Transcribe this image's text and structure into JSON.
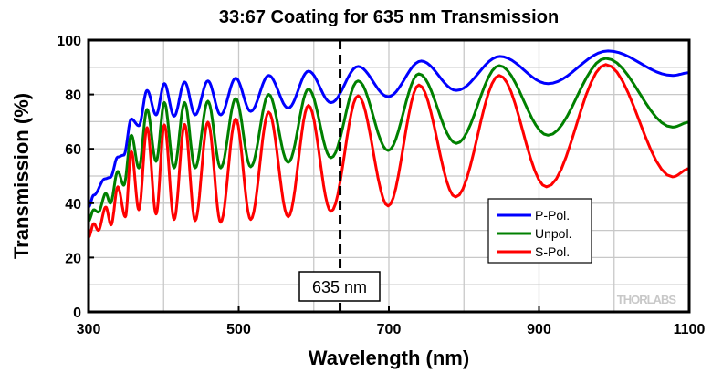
{
  "chart_data": {
    "type": "line",
    "title": "33:67 Coating for 635 nm Transmission",
    "xlabel": "Wavelength (nm)",
    "ylabel": "Transmission (%)",
    "xlim": [
      300,
      1100
    ],
    "ylim": [
      0,
      100
    ],
    "xticks": [
      300,
      500,
      700,
      900,
      1100
    ],
    "yticks": [
      0,
      20,
      40,
      60,
      80,
      100
    ],
    "grid": true,
    "legend_placement": "lower-right",
    "annotation": {
      "x": 635,
      "label": "635 nm",
      "style": "dashed vertical line"
    },
    "watermark": "THORLABS",
    "series": [
      {
        "name": "P-Pol.",
        "color": "#0000ff",
        "x": [
          300,
          307,
          322,
          329,
          339,
          347,
          357,
          367,
          378,
          390,
          401,
          414,
          428,
          442,
          459,
          476,
          496,
          516,
          540,
          566,
          593,
          623,
          659,
          699,
          743,
          790,
          848,
          912,
          992,
          1078,
          1100
        ],
        "y": [
          38.6,
          43,
          49,
          49.5,
          57,
          57.7,
          71,
          68.5,
          81.5,
          72.5,
          84,
          72,
          84.6,
          72.5,
          85,
          72.5,
          86,
          73.8,
          87,
          75,
          88.6,
          77,
          90.3,
          79.2,
          92.3,
          81.5,
          94,
          84,
          96,
          87,
          88
        ]
      },
      {
        "name": "Unpol.",
        "color": "#008000",
        "x": [
          300,
          307,
          313,
          323,
          329,
          339,
          347,
          357,
          367,
          378,
          390,
          401,
          414,
          428,
          442,
          459,
          476,
          496,
          516,
          540,
          566,
          593,
          623,
          659,
          699,
          740,
          790,
          847,
          912,
          989,
          1078,
          1100
        ],
        "y": [
          33.5,
          37.6,
          36.7,
          43.6,
          40,
          51.7,
          46.6,
          65,
          53,
          74.5,
          55.4,
          77,
          53,
          77,
          53,
          77.5,
          53,
          78.5,
          53.4,
          80,
          55,
          82,
          56.7,
          85,
          59.4,
          87.6,
          62,
          90.6,
          65,
          93.3,
          68,
          69.8
        ]
      },
      {
        "name": "S-Pol.",
        "color": "#ff0000",
        "x": [
          300,
          307,
          313,
          323,
          330,
          339,
          349,
          357,
          367,
          378,
          390,
          401,
          414,
          428,
          442,
          459,
          476,
          496,
          516,
          540,
          566,
          593,
          623,
          659,
          699,
          740,
          789,
          847,
          910,
          989,
          1078,
          1100
        ],
        "y": [
          27.5,
          32.5,
          30,
          38.6,
          32,
          46,
          35,
          59,
          37.6,
          67.8,
          36,
          68.8,
          34,
          69,
          33.6,
          69.8,
          33,
          71,
          34,
          73.5,
          35,
          76,
          37,
          79.5,
          39,
          83.5,
          42.3,
          87,
          46,
          91,
          49.7,
          52.7
        ]
      }
    ]
  }
}
